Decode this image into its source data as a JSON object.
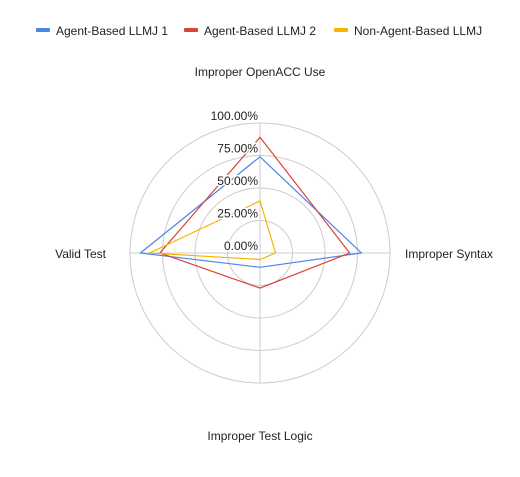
{
  "chart_data": {
    "type": "radar",
    "title": "",
    "categories": [
      "Improper OpenACC Use",
      "Improper Syntax",
      "Improper Test Logic",
      "Valid Test"
    ],
    "tick_labels": [
      "0.00%",
      "25.00%",
      "50.00%",
      "75.00%",
      "100.00%"
    ],
    "range": [
      0,
      100
    ],
    "unit": "%",
    "grid": true,
    "legend_position": "top",
    "series": [
      {
        "name": "Agent-Based LLMJ 1",
        "color": "#4a86e8",
        "values": [
          74,
          78,
          11,
          92
        ]
      },
      {
        "name": "Agent-Based LLMJ 2",
        "color": "#db4437",
        "values": [
          89,
          69,
          27,
          77
        ]
      },
      {
        "name": "Non-Agent-Based LLMJ",
        "color": "#f4b400",
        "values": [
          40,
          12,
          5,
          85
        ]
      }
    ]
  }
}
